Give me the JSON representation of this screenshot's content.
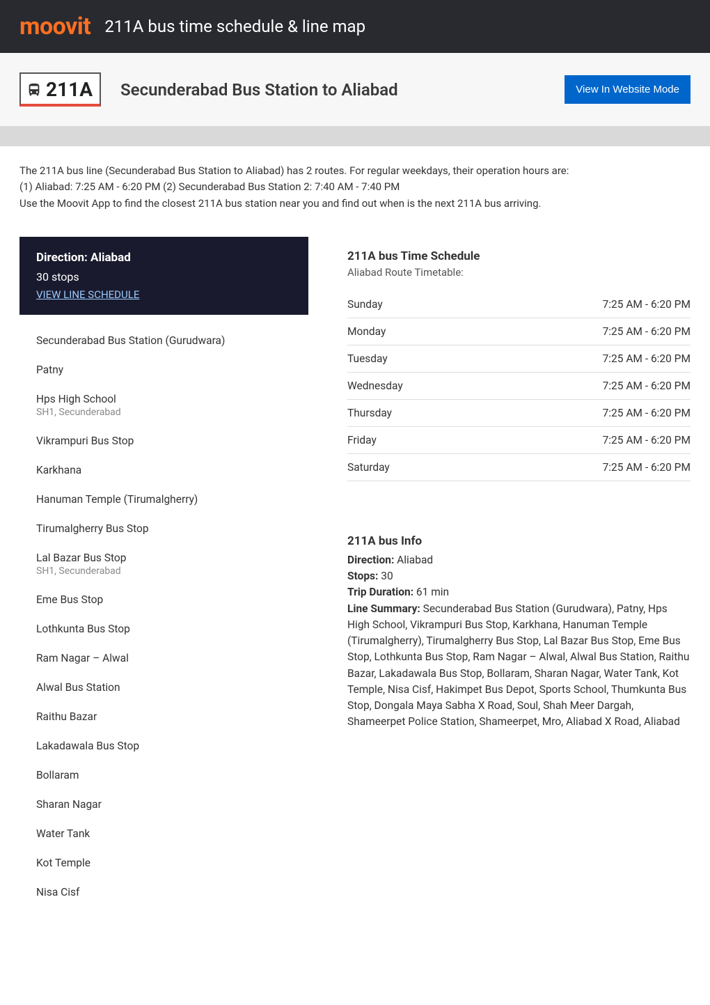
{
  "header": {
    "logo": "moovit",
    "title": "211A bus time schedule & line map"
  },
  "subheader": {
    "route_number": "211A",
    "route_title": "Secunderabad Bus Station to Aliabad",
    "website_mode_btn": "View In Website Mode"
  },
  "intro": {
    "line1": "The 211A bus line (Secunderabad Bus Station to Aliabad) has 2 routes. For regular weekdays, their operation hours are:",
    "line2": "(1) Aliabad: 7:25 AM - 6:20 PM (2) Secunderabad Bus Station 2: 7:40 AM - 7:40 PM",
    "line3": "Use the Moovit App to find the closest 211A bus station near you and find out when is the next 211A bus arriving."
  },
  "direction": {
    "title": "Direction: Aliabad",
    "stops_count": "30 stops",
    "schedule_link": "VIEW LINE SCHEDULE"
  },
  "stops": [
    {
      "name": "Secunderabad Bus Station (Gurudwara)",
      "sub": ""
    },
    {
      "name": "Patny",
      "sub": ""
    },
    {
      "name": "Hps High School",
      "sub": "SH1, Secunderabad"
    },
    {
      "name": "Vikrampuri Bus Stop",
      "sub": ""
    },
    {
      "name": "Karkhana",
      "sub": ""
    },
    {
      "name": "Hanuman Temple (Tirumalgherry)",
      "sub": ""
    },
    {
      "name": "Tirumalgherry Bus Stop",
      "sub": ""
    },
    {
      "name": "Lal Bazar Bus Stop",
      "sub": "SH1, Secunderabad"
    },
    {
      "name": "Eme Bus Stop",
      "sub": ""
    },
    {
      "name": "Lothkunta Bus Stop",
      "sub": ""
    },
    {
      "name": "Ram Nagar – Alwal",
      "sub": ""
    },
    {
      "name": "Alwal Bus Station",
      "sub": ""
    },
    {
      "name": "Raithu Bazar",
      "sub": ""
    },
    {
      "name": "Lakadawala Bus Stop",
      "sub": ""
    },
    {
      "name": "Bollaram",
      "sub": ""
    },
    {
      "name": "Sharan Nagar",
      "sub": ""
    },
    {
      "name": "Water Tank",
      "sub": ""
    },
    {
      "name": "Kot Temple",
      "sub": ""
    },
    {
      "name": "Nisa Cisf",
      "sub": ""
    }
  ],
  "schedule": {
    "title": "211A bus Time Schedule",
    "subtitle": "Aliabad Route Timetable:",
    "rows": [
      {
        "day": "Sunday",
        "hours": "7:25 AM - 6:20 PM"
      },
      {
        "day": "Monday",
        "hours": "7:25 AM - 6:20 PM"
      },
      {
        "day": "Tuesday",
        "hours": "7:25 AM - 6:20 PM"
      },
      {
        "day": "Wednesday",
        "hours": "7:25 AM - 6:20 PM"
      },
      {
        "day": "Thursday",
        "hours": "7:25 AM - 6:20 PM"
      },
      {
        "day": "Friday",
        "hours": "7:25 AM - 6:20 PM"
      },
      {
        "day": "Saturday",
        "hours": "7:25 AM - 6:20 PM"
      }
    ]
  },
  "info": {
    "title": "211A bus Info",
    "direction_label": "Direction:",
    "direction_value": " Aliabad",
    "stops_label": "Stops:",
    "stops_value": " 30",
    "duration_label": "Trip Duration:",
    "duration_value": " 61 min",
    "summary_label": "Line Summary:",
    "summary_value": " Secunderabad Bus Station (Gurudwara), Patny, Hps High School, Vikrampuri Bus Stop, Karkhana, Hanuman Temple (Tirumalgherry), Tirumalgherry Bus Stop, Lal Bazar Bus Stop, Eme Bus Stop, Lothkunta Bus Stop, Ram Nagar – Alwal, Alwal Bus Station, Raithu Bazar, Lakadawala Bus Stop, Bollaram, Sharan Nagar, Water Tank, Kot Temple, Nisa Cisf, Hakimpet Bus Depot, Sports School, Thumkunta Bus Stop, Dongala Maya Sabha X Road, Soul, Shah Meer Dargah, Shameerpet Police Station, Shameerpet, Mro, Aliabad X Road, Aliabad"
  },
  "colors": {
    "header_bg": "#292a30",
    "logo_color": "#ff6f20",
    "badge_accent": "#e74c3c",
    "button_bg": "#0066cc",
    "direction_bg": "#1a1a2e",
    "link_color": "#99ccff"
  }
}
